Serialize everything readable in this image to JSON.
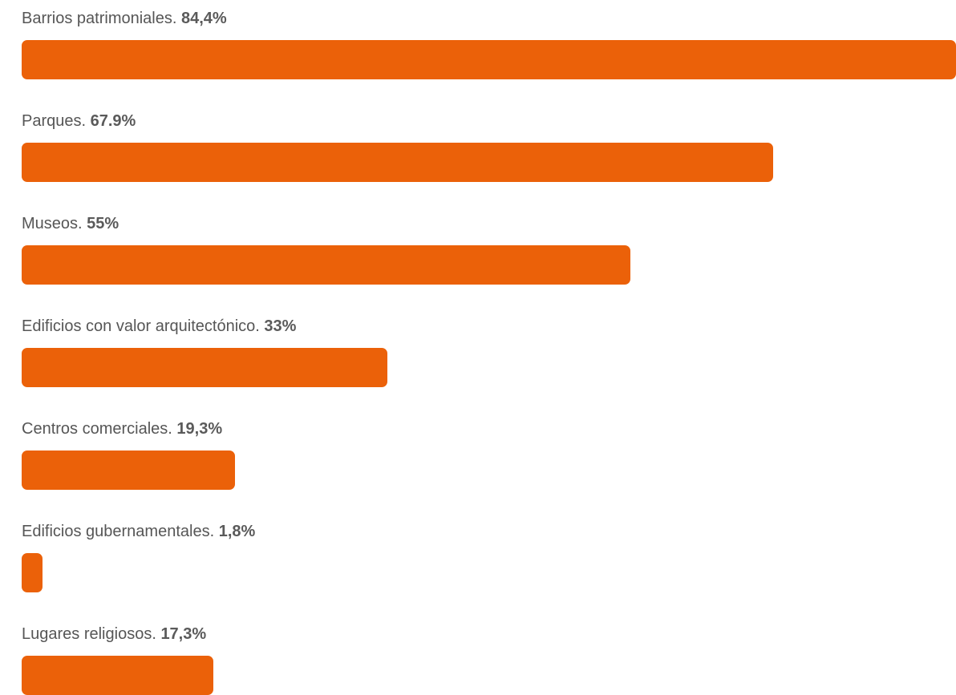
{
  "chart_data": {
    "type": "bar",
    "orientation": "horizontal",
    "title": "",
    "xlabel": "",
    "ylabel": "",
    "bar_color": "#EB6109",
    "categories": [
      "Barrios patrimoniales.",
      "Parques.",
      "Museos.",
      "Edificios con valor arquitectónico.",
      "Centros comerciales.",
      "Edificios gubernamentales.",
      "Lugares religiosos."
    ],
    "values": [
      84.4,
      67.9,
      55,
      33,
      19.3,
      1.8,
      17.3
    ],
    "value_labels": [
      "84,4%",
      "67.9%",
      "55%",
      "33%",
      "19,3%",
      "1,8%",
      "17,3%"
    ],
    "xlim": [
      0,
      84.4
    ],
    "grid": false,
    "legend": "none"
  }
}
